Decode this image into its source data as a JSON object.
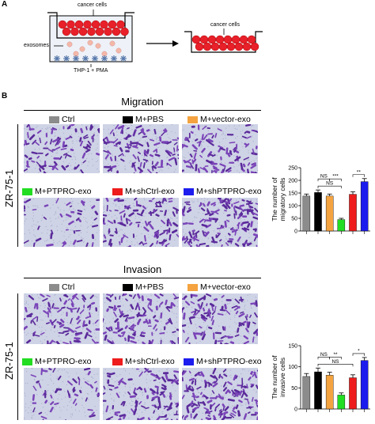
{
  "panel_a": {
    "letter": "A",
    "cancer_cells_label": "cancer cells",
    "exosomes_label": "exosomes",
    "thp_label": "THP-1 + PMA",
    "cancer_cells_label_right": "cancer cells"
  },
  "panel_b": {
    "letter": "B",
    "cell_line": "ZR-75-1",
    "migration_title": "Migration",
    "invasion_title": "Invasion",
    "legend": [
      {
        "label": "Ctrl",
        "color": "#8c8c8c"
      },
      {
        "label": "M+PBS",
        "color": "#000000"
      },
      {
        "label": "M+vector-exo",
        "color": "#f4a340"
      },
      {
        "label": "M+PTPRO-exo",
        "color": "#22dd22"
      },
      {
        "label": "M+shCtrl-exo",
        "color": "#ee1c1c"
      },
      {
        "label": "M+shPTPRO-exo",
        "color": "#1c1cee"
      }
    ]
  },
  "chart_data": [
    {
      "type": "bar",
      "categories": [
        "Ctrl",
        "M+PBS",
        "M+vector-exo",
        "M+PTPRO-exo",
        "M+shCtrl-exo",
        "M+shPTPRO-exo"
      ],
      "values": [
        138,
        152,
        138,
        45,
        145,
        195
      ],
      "errors": [
        8,
        10,
        8,
        5,
        10,
        12
      ],
      "colors": [
        "#8c8c8c",
        "#000000",
        "#f4a340",
        "#22dd22",
        "#ee1c1c",
        "#1c1cee"
      ],
      "ylabel": "The number of migratory cells",
      "ylim": [
        0,
        250
      ],
      "yticks": [
        "0",
        "50",
        "100",
        "150",
        "200",
        "250"
      ],
      "annotations": [
        {
          "from": 1,
          "to": 3,
          "text": "NS"
        },
        {
          "from": 1,
          "to": 2,
          "text": "NS"
        },
        {
          "from": 2,
          "to": 3,
          "text": "***"
        },
        {
          "from": 4,
          "to": 5,
          "text": "**"
        }
      ]
    },
    {
      "type": "bar",
      "categories": [
        "Ctrl",
        "M+PBS",
        "M+vector-exo",
        "M+PTPRO-exo",
        "M+shCtrl-exo",
        "M+shPTPRO-exo"
      ],
      "values": [
        77,
        88,
        80,
        33,
        74,
        115
      ],
      "errors": [
        7,
        9,
        7,
        5,
        7,
        7
      ],
      "colors": [
        "#8c8c8c",
        "#000000",
        "#f4a340",
        "#22dd22",
        "#ee1c1c",
        "#1c1cee"
      ],
      "ylabel": "The number of invasive cells",
      "ylim": [
        0,
        150
      ],
      "yticks": [
        "0",
        "50",
        "100",
        "150"
      ],
      "annotations": [
        {
          "from": 1,
          "to": 4,
          "text": "NS"
        },
        {
          "from": 4,
          "to": 5,
          "text": "*"
        },
        {
          "from": 1,
          "to": 2,
          "text": "NS"
        },
        {
          "from": 2,
          "to": 3,
          "text": "**"
        }
      ]
    }
  ]
}
